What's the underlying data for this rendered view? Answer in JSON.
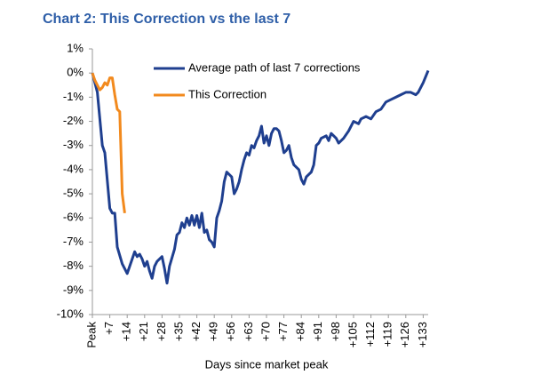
{
  "chart_data": {
    "type": "line",
    "title": "Chart 2: This Correction vs the last 7",
    "x_label": "Days since market peak",
    "xlim": [
      0,
      135
    ],
    "xticks": [
      {
        "value": 0,
        "label": "Peak"
      },
      {
        "value": 7,
        "label": "+7"
      },
      {
        "value": 14,
        "label": "+14"
      },
      {
        "value": 21,
        "label": "+21"
      },
      {
        "value": 28,
        "label": "+28"
      },
      {
        "value": 35,
        "label": "+35"
      },
      {
        "value": 42,
        "label": "+42"
      },
      {
        "value": 49,
        "label": "+49"
      },
      {
        "value": 56,
        "label": "+56"
      },
      {
        "value": 63,
        "label": "+63"
      },
      {
        "value": 70,
        "label": "+70"
      },
      {
        "value": 77,
        "label": "+77"
      },
      {
        "value": 84,
        "label": "+84"
      },
      {
        "value": 91,
        "label": "+91"
      },
      {
        "value": 98,
        "label": "+98"
      },
      {
        "value": 105,
        "label": "+105"
      },
      {
        "value": 112,
        "label": "+112"
      },
      {
        "value": 119,
        "label": "+119"
      },
      {
        "value": 126,
        "label": "+126"
      },
      {
        "value": 133,
        "label": "+133"
      }
    ],
    "ylim": [
      -10,
      1
    ],
    "yticks": [
      {
        "value": 1,
        "label": "1%"
      },
      {
        "value": 0,
        "label": "0%"
      },
      {
        "value": -1,
        "label": "-1%"
      },
      {
        "value": -2,
        "label": "-2%"
      },
      {
        "value": -3,
        "label": "-3%"
      },
      {
        "value": -4,
        "label": "-4%"
      },
      {
        "value": -5,
        "label": "-5%"
      },
      {
        "value": -6,
        "label": "-6%"
      },
      {
        "value": -7,
        "label": "-7%"
      },
      {
        "value": -8,
        "label": "-8%"
      },
      {
        "value": -9,
        "label": "-9%"
      },
      {
        "value": -10,
        "label": "-10%"
      }
    ],
    "grid": false,
    "series": [
      {
        "name": "Average path of last 7 corrections",
        "color": "#1f3f8f",
        "x": [
          0,
          2,
          4,
          5,
          7,
          8,
          9,
          10,
          12,
          14,
          15,
          16,
          17,
          18,
          19,
          20,
          21,
          22,
          23,
          24,
          25,
          26,
          27,
          28,
          29,
          30,
          31,
          33,
          34,
          35,
          36,
          37,
          38,
          39,
          40,
          41,
          42,
          43,
          44,
          45,
          46,
          47,
          48,
          49,
          50,
          51,
          52,
          53,
          54,
          55,
          56,
          57,
          58,
          59,
          60,
          61,
          62,
          63,
          64,
          65,
          66,
          67,
          68,
          69,
          70,
          71,
          72,
          73,
          74,
          75,
          76,
          77,
          78,
          79,
          80,
          81,
          82,
          83,
          84,
          85,
          86,
          87,
          88,
          89,
          90,
          91,
          92,
          94,
          95,
          96,
          97,
          98,
          99,
          100,
          101,
          103,
          105,
          107,
          108,
          110,
          112,
          114,
          116,
          118,
          120,
          122,
          124,
          126,
          128,
          130,
          131,
          133,
          135
        ],
        "values": [
          0,
          -0.8,
          -3,
          -3.3,
          -5.6,
          -5.8,
          -5.8,
          -7.2,
          -7.9,
          -8.3,
          -8.0,
          -7.7,
          -7.4,
          -7.6,
          -7.5,
          -7.7,
          -8.0,
          -7.8,
          -8.2,
          -8.5,
          -8.0,
          -7.8,
          -7.7,
          -7.6,
          -8.1,
          -8.7,
          -8.0,
          -7.3,
          -6.7,
          -6.6,
          -6.2,
          -6.4,
          -6.0,
          -6.3,
          -5.9,
          -6.3,
          -5.9,
          -6.4,
          -5.8,
          -6.6,
          -6.5,
          -6.9,
          -7.0,
          -7.2,
          -6.0,
          -5.7,
          -5.3,
          -4.5,
          -4.1,
          -4.2,
          -4.3,
          -5.0,
          -4.8,
          -4.5,
          -4.0,
          -3.6,
          -3.3,
          -3.4,
          -3.0,
          -3.1,
          -2.8,
          -2.6,
          -2.2,
          -2.9,
          -2.6,
          -3.0,
          -2.5,
          -2.3,
          -2.3,
          -2.4,
          -2.8,
          -3.3,
          -3.2,
          -3.0,
          -3.5,
          -3.8,
          -3.9,
          -4.0,
          -4.4,
          -4.6,
          -4.3,
          -4.2,
          -4.1,
          -3.8,
          -3.0,
          -2.9,
          -2.7,
          -2.6,
          -2.8,
          -2.5,
          -2.6,
          -2.7,
          -2.9,
          -2.8,
          -2.7,
          -2.4,
          -2.0,
          -2.1,
          -1.9,
          -1.8,
          -1.9,
          -1.6,
          -1.5,
          -1.2,
          -1.1,
          -1.0,
          -0.9,
          -0.8,
          -0.8,
          -0.9,
          -0.8,
          -0.4,
          0.1
        ]
      },
      {
        "name": "This Correction",
        "color": "#f28a1e",
        "x": [
          0,
          1,
          2,
          3,
          4,
          5,
          6,
          7,
          8,
          9,
          10,
          11,
          12,
          13
        ],
        "values": [
          0,
          -0.3,
          -0.5,
          -0.7,
          -0.6,
          -0.4,
          -0.5,
          -0.2,
          -0.2,
          -0.9,
          -1.5,
          -1.6,
          -5.0,
          -5.8
        ]
      }
    ]
  }
}
